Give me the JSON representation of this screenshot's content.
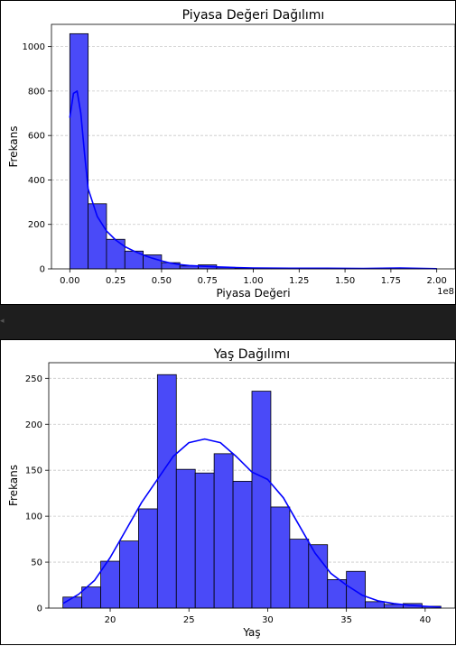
{
  "chart_data": [
    {
      "type": "bar",
      "subtype": "histogram",
      "title": "Piyasa Değeri Dağılımı",
      "xlabel": "Piyasa Değeri",
      "ylabel": "Frekans",
      "x_offset_text": "1e8",
      "bin_edges": [
        0.0,
        0.1,
        0.2,
        0.3,
        0.4,
        0.5,
        0.6,
        0.7,
        0.8,
        0.9,
        1.0,
        1.1,
        1.2,
        1.3,
        1.4,
        1.5,
        1.6,
        1.7,
        1.8,
        1.9,
        2.0
      ],
      "values": [
        1058,
        293,
        133,
        80,
        63,
        28,
        13,
        18,
        7,
        3,
        2,
        1,
        1,
        1,
        2,
        1,
        1,
        1,
        2,
        1
      ],
      "kde": {
        "x": [
          0.0,
          0.02,
          0.04,
          0.06,
          0.08,
          0.1,
          0.15,
          0.2,
          0.25,
          0.3,
          0.35,
          0.4,
          0.45,
          0.5,
          0.55,
          0.6,
          0.65,
          0.7,
          0.75,
          0.8,
          0.9,
          1.0,
          1.2,
          1.4,
          1.6,
          1.8,
          2.0
        ],
        "y": [
          680,
          790,
          800,
          700,
          520,
          360,
          235,
          170,
          130,
          100,
          80,
          62,
          48,
          36,
          26,
          19,
          15,
          13,
          11,
          9,
          6,
          4,
          3,
          3,
          2,
          4,
          1
        ]
      },
      "xlim": [
        -0.1,
        2.1
      ],
      "ylim": [
        0,
        1100
      ],
      "xticks": [
        0.0,
        0.25,
        0.5,
        0.75,
        1.0,
        1.25,
        1.5,
        1.75,
        2.0
      ],
      "xtick_labels": [
        "0.00",
        "0.25",
        "0.50",
        "0.75",
        "1.00",
        "1.25",
        "1.50",
        "1.75",
        "2.00"
      ],
      "yticks": [
        0,
        200,
        400,
        600,
        800,
        1000
      ],
      "ytick_labels": [
        "0",
        "200",
        "400",
        "600",
        "800",
        "1000"
      ],
      "grid": "y dashed",
      "bar_color": "#4a4af8",
      "edge_color": "#000000",
      "line_color": "#0000ff"
    },
    {
      "type": "bar",
      "subtype": "histogram",
      "title": "Yaş Dağılımı",
      "xlabel": "Yaş",
      "ylabel": "Frekans",
      "bin_edges": [
        17.0,
        18.2,
        19.4,
        20.6,
        21.8,
        23.0,
        24.2,
        25.4,
        26.6,
        27.8,
        29.0,
        30.2,
        31.4,
        32.6,
        33.8,
        35.0,
        36.2,
        37.4,
        38.6,
        39.8,
        41.0
      ],
      "values": [
        12,
        23,
        51,
        73,
        108,
        254,
        151,
        147,
        168,
        138,
        236,
        110,
        75,
        69,
        31,
        40,
        7,
        4,
        5,
        2
      ],
      "kde": {
        "x": [
          17,
          18,
          19,
          20,
          21,
          22,
          23,
          24,
          25,
          26,
          27,
          28,
          29,
          30,
          31,
          32,
          33,
          34,
          35,
          36,
          37,
          38,
          39,
          40,
          41
        ],
        "y": [
          5,
          15,
          30,
          55,
          85,
          115,
          140,
          165,
          180,
          184,
          180,
          165,
          148,
          140,
          120,
          90,
          60,
          38,
          25,
          14,
          8,
          5,
          3,
          2,
          1
        ]
      },
      "xlim": [
        16.1,
        41.9
      ],
      "ylim": [
        0,
        267
      ],
      "xticks": [
        20,
        25,
        30,
        35,
        40
      ],
      "xtick_labels": [
        "20",
        "25",
        "30",
        "35",
        "40"
      ],
      "yticks": [
        0,
        50,
        100,
        150,
        200,
        250
      ],
      "ytick_labels": [
        "0",
        "50",
        "100",
        "150",
        "200",
        "250"
      ],
      "grid": "y dashed",
      "bar_color": "#4a4af8",
      "edge_color": "#000000",
      "line_color": "#0000ff"
    }
  ]
}
